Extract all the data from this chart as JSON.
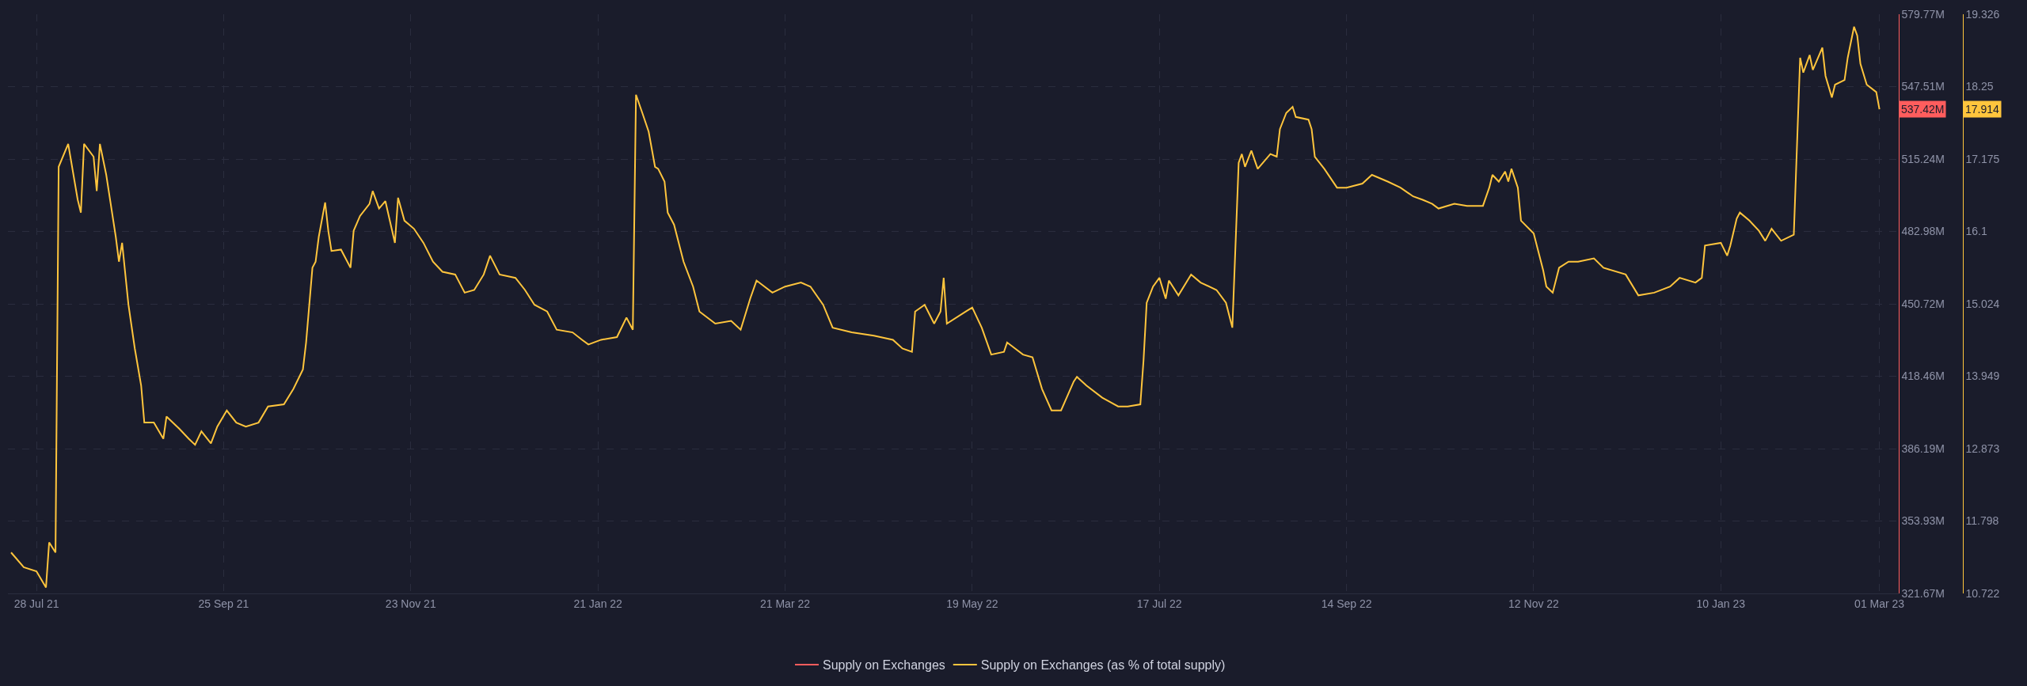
{
  "chart_data": {
    "type": "line",
    "x": [
      "2021-07-20",
      "2021-07-24",
      "2021-07-28",
      "2021-07-31",
      "2021-08-01",
      "2021-08-03",
      "2021-08-04",
      "2021-08-07",
      "2021-08-10",
      "2021-08-11",
      "2021-08-12",
      "2021-08-15",
      "2021-08-16",
      "2021-08-17",
      "2021-08-19",
      "2021-08-22",
      "2021-08-23",
      "2021-08-24",
      "2021-08-26",
      "2021-08-28",
      "2021-08-30",
      "2021-08-31",
      "2021-09-03",
      "2021-09-06",
      "2021-09-07",
      "2021-09-11",
      "2021-09-14",
      "2021-09-16",
      "2021-09-18",
      "2021-09-21",
      "2021-09-23",
      "2021-09-26",
      "2021-09-29",
      "2021-10-02",
      "2021-10-06",
      "2021-10-09",
      "2021-10-14",
      "2021-10-17",
      "2021-10-20",
      "2021-10-21",
      "2021-10-23",
      "2021-10-24",
      "2021-10-25",
      "2021-10-27",
      "2021-10-28",
      "2021-10-29",
      "2021-11-01",
      "2021-11-04",
      "2021-11-05",
      "2021-11-07",
      "2021-11-10",
      "2021-11-11",
      "2021-11-13",
      "2021-11-15",
      "2021-11-18",
      "2021-11-19",
      "2021-11-21",
      "2021-11-24",
      "2021-11-27",
      "2021-11-30",
      "2021-12-03",
      "2021-12-07",
      "2021-12-10",
      "2021-12-13",
      "2021-12-16",
      "2021-12-18",
      "2021-12-21",
      "2021-12-26",
      "2021-12-29",
      "2022-01-01",
      "2022-01-05",
      "2022-01-08",
      "2022-01-13",
      "2022-01-16",
      "2022-01-18",
      "2022-01-22",
      "2022-01-27",
      "2022-01-30",
      "2022-02-01",
      "2022-02-02",
      "2022-02-04",
      "2022-02-06",
      "2022-02-08",
      "2022-02-09",
      "2022-02-11",
      "2022-02-12",
      "2022-02-14",
      "2022-02-17",
      "2022-02-20",
      "2022-02-22",
      "2022-02-27",
      "2022-03-04",
      "2022-03-07",
      "2022-03-10",
      "2022-03-12",
      "2022-03-17",
      "2022-03-21",
      "2022-03-26",
      "2022-03-29",
      "2022-04-02",
      "2022-04-05",
      "2022-04-11",
      "2022-04-18",
      "2022-04-24",
      "2022-04-27",
      "2022-04-30",
      "2022-05-01",
      "2022-05-04",
      "2022-05-07",
      "2022-05-09",
      "2022-05-10",
      "2022-05-11",
      "2022-05-17",
      "2022-05-19",
      "2022-05-22",
      "2022-05-25",
      "2022-05-29",
      "2022-05-30",
      "2022-06-04",
      "2022-06-07",
      "2022-06-10",
      "2022-06-13",
      "2022-06-16",
      "2022-06-20",
      "2022-06-21",
      "2022-06-24",
      "2022-06-29",
      "2022-07-04",
      "2022-07-07",
      "2022-07-11",
      "2022-07-12",
      "2022-07-13",
      "2022-07-15",
      "2022-07-17",
      "2022-07-19",
      "2022-07-20",
      "2022-07-23",
      "2022-07-27",
      "2022-07-30",
      "2022-08-04",
      "2022-08-07",
      "2022-08-09",
      "2022-08-11",
      "2022-08-12",
      "2022-08-13",
      "2022-08-15",
      "2022-08-17",
      "2022-08-21",
      "2022-08-23",
      "2022-08-24",
      "2022-08-26",
      "2022-08-28",
      "2022-08-29",
      "2022-09-02",
      "2022-09-03",
      "2022-09-04",
      "2022-09-07",
      "2022-09-11",
      "2022-09-14",
      "2022-09-19",
      "2022-09-22",
      "2022-09-27",
      "2022-10-01",
      "2022-10-05",
      "2022-10-08",
      "2022-10-11",
      "2022-10-13",
      "2022-10-18",
      "2022-10-22",
      "2022-10-27",
      "2022-10-29",
      "2022-10-30",
      "2022-11-01",
      "2022-11-03",
      "2022-11-04",
      "2022-11-05",
      "2022-11-07",
      "2022-11-08",
      "2022-11-12",
      "2022-11-15",
      "2022-11-16",
      "2022-11-18",
      "2022-11-20",
      "2022-11-23",
      "2022-11-26",
      "2022-12-01",
      "2022-12-04",
      "2022-12-11",
      "2022-12-15",
      "2022-12-20",
      "2022-12-25",
      "2022-12-28",
      "2023-01-02",
      "2023-01-04",
      "2023-01-05",
      "2023-01-10",
      "2023-01-12",
      "2023-01-13",
      "2023-01-15",
      "2023-01-16",
      "2023-01-19",
      "2023-01-22",
      "2023-01-24",
      "2023-01-26",
      "2023-01-29",
      "2023-02-02",
      "2023-02-04",
      "2023-02-05",
      "2023-02-07",
      "2023-02-08",
      "2023-02-10",
      "2023-02-11",
      "2023-02-12",
      "2023-02-14",
      "2023-02-15",
      "2023-02-18",
      "2023-02-19",
      "2023-02-21",
      "2023-02-22",
      "2023-02-23",
      "2023-02-25",
      "2023-02-28",
      "2023-03-01"
    ],
    "series": [
      {
        "name": "Supply on Exchanges",
        "color": "#ff5d5d",
        "axis": "y",
        "values": [
          null,
          null,
          null,
          null,
          null,
          null,
          null,
          null,
          null,
          null,
          null,
          null,
          null,
          null,
          null,
          null,
          null,
          null,
          null,
          null,
          null,
          null,
          null,
          null,
          null,
          null,
          null,
          null,
          null,
          null,
          null,
          null,
          null,
          null,
          null,
          null,
          null,
          null,
          null,
          null,
          null,
          null,
          null,
          null,
          null,
          null,
          null,
          null,
          null,
          null,
          null,
          null,
          null,
          null,
          null,
          null,
          null,
          null,
          null,
          null,
          null,
          null,
          null,
          null,
          null,
          null,
          null,
          null,
          null,
          null,
          null,
          null,
          null,
          null,
          null,
          null,
          null,
          null,
          null,
          null,
          null,
          null,
          null,
          null,
          null,
          null,
          null,
          null,
          null,
          null,
          null,
          null,
          null,
          null,
          null,
          null,
          null,
          null,
          null,
          null,
          null,
          null,
          null,
          null,
          null,
          null,
          null,
          null,
          null,
          null,
          null,
          null,
          null,
          null,
          null,
          null,
          null,
          null,
          null,
          null,
          null,
          null,
          null,
          null,
          null,
          null,
          null,
          null,
          null,
          null,
          null,
          null,
          null,
          null,
          null,
          null,
          null,
          null,
          null,
          null,
          null,
          null,
          null,
          null,
          null,
          null,
          null,
          null,
          null,
          null,
          null,
          null,
          null,
          null,
          null,
          null,
          null,
          null,
          null,
          null,
          null,
          null,
          null,
          null,
          null,
          null,
          null,
          null,
          null,
          null,
          null,
          null,
          null,
          null,
          null,
          null,
          null,
          null,
          null,
          null,
          null,
          null,
          null,
          null,
          null,
          null,
          null,
          null,
          null,
          null,
          null,
          null,
          null,
          null,
          null,
          null,
          null,
          null,
          null,
          null,
          null,
          null,
          null,
          null,
          null,
          null,
          null,
          null,
          null,
          null,
          null,
          null,
          null,
          null,
          null,
          null,
          null,
          null,
          null,
          null,
          null,
          null,
          null
        ]
      },
      {
        "name": "Supply on Exchanges (as % of total supply)",
        "color": "#ffc53d",
        "axis": "y2",
        "values": [
          11.33,
          11.11,
          11.05,
          10.81,
          11.48,
          11.33,
          17.06,
          17.4,
          16.57,
          16.38,
          17.4,
          17.21,
          16.7,
          17.4,
          16.94,
          16.02,
          15.65,
          15.93,
          15.01,
          14.36,
          13.81,
          13.26,
          13.26,
          13.02,
          13.35,
          13.17,
          13.02,
          12.93,
          13.13,
          12.95,
          13.2,
          13.44,
          13.26,
          13.2,
          13.26,
          13.5,
          13.53,
          13.76,
          14.05,
          14.45,
          15.56,
          15.65,
          16.02,
          16.53,
          16.11,
          15.81,
          15.83,
          15.56,
          16.11,
          16.33,
          16.51,
          16.7,
          16.44,
          16.55,
          15.93,
          16.6,
          16.26,
          16.14,
          15.93,
          15.65,
          15.5,
          15.46,
          15.19,
          15.23,
          15.46,
          15.74,
          15.46,
          15.41,
          15.23,
          15.01,
          14.91,
          14.64,
          14.6,
          14.49,
          14.42,
          14.49,
          14.53,
          14.82,
          14.64,
          18.13,
          17.86,
          17.58,
          17.06,
          17.03,
          16.84,
          16.38,
          16.2,
          15.65,
          15.28,
          14.91,
          14.73,
          14.77,
          14.64,
          15.1,
          15.37,
          15.19,
          15.28,
          15.34,
          15.28,
          15.01,
          14.67,
          14.6,
          14.55,
          14.49,
          14.36,
          14.31,
          14.91,
          15.01,
          14.73,
          14.91,
          15.41,
          14.73,
          14.91,
          14.97,
          14.67,
          14.27,
          14.31,
          14.45,
          14.27,
          14.23,
          13.76,
          13.44,
          13.44,
          13.87,
          13.94,
          13.81,
          13.63,
          13.5,
          13.5,
          13.53,
          14.18,
          15.04,
          15.28,
          15.41,
          15.1,
          15.37,
          15.15,
          15.46,
          15.34,
          15.23,
          15.04,
          14.67,
          17.12,
          17.25,
          17.06,
          17.3,
          17.03,
          17.25,
          17.21,
          17.62,
          17.86,
          17.95,
          17.8,
          17.76,
          17.62,
          17.21,
          17.03,
          16.75,
          16.75,
          16.81,
          16.94,
          16.84,
          16.75,
          16.62,
          16.57,
          16.51,
          16.44,
          16.51,
          16.48,
          16.48,
          16.75,
          16.94,
          16.84,
          16.99,
          16.84,
          17.03,
          16.75,
          16.26,
          16.07,
          15.52,
          15.28,
          15.19,
          15.56,
          15.65,
          15.65,
          15.7,
          15.56,
          15.46,
          15.15,
          15.19,
          15.28,
          15.41,
          15.34,
          15.41,
          15.89,
          15.93,
          15.74,
          15.89,
          16.29,
          16.38,
          16.26,
          16.11,
          15.96,
          16.14,
          15.96,
          16.05,
          18.68,
          18.46,
          18.72,
          18.5,
          18.72,
          18.83,
          18.41,
          18.09,
          18.28,
          18.35,
          18.68,
          19.14,
          19.01,
          18.59,
          18.28,
          18.17,
          17.914
        ]
      }
    ],
    "xlim": [
      "2021-07-19",
      "2023-03-07"
    ],
    "xticks": [
      {
        "value": "2021-07-28",
        "label": "28 Jul 21"
      },
      {
        "value": "2021-09-25",
        "label": "25 Sep 21"
      },
      {
        "value": "2021-11-23",
        "label": "23 Nov 21"
      },
      {
        "value": "2022-01-21",
        "label": "21 Jan 22"
      },
      {
        "value": "2022-03-21",
        "label": "21 Mar 22"
      },
      {
        "value": "2022-05-19",
        "label": "19 May 22"
      },
      {
        "value": "2022-07-17",
        "label": "17 Jul 22"
      },
      {
        "value": "2022-09-14",
        "label": "14 Sep 22"
      },
      {
        "value": "2022-11-12",
        "label": "12 Nov 22"
      },
      {
        "value": "2023-01-10",
        "label": "10 Jan 23"
      },
      {
        "value": "2023-03-01",
        "label": "01 Mar 23"
      }
    ],
    "ylim": [
      321.67,
      579.77
    ],
    "yticks": [
      {
        "value": 321.67,
        "label": "321.67M"
      },
      {
        "value": 353.93,
        "label": "353.93M"
      },
      {
        "value": 386.19,
        "label": "386.19M"
      },
      {
        "value": 418.46,
        "label": "418.46M"
      },
      {
        "value": 450.72,
        "label": "450.72M"
      },
      {
        "value": 482.98,
        "label": "482.98M"
      },
      {
        "value": 515.24,
        "label": "515.24M"
      },
      {
        "value": 547.51,
        "label": "547.51M"
      },
      {
        "value": 579.77,
        "label": "579.77M"
      }
    ],
    "y2lim": [
      10.722,
      19.326
    ],
    "y2ticks": [
      10.722,
      11.798,
      12.873,
      13.949,
      15.024,
      16.1,
      17.175,
      18.25,
      19.326
    ],
    "annotations": [
      "537.42M",
      "17.914"
    ],
    "grid": true,
    "legend": "bottom",
    "marker": "none",
    "line_style": "solid"
  }
}
